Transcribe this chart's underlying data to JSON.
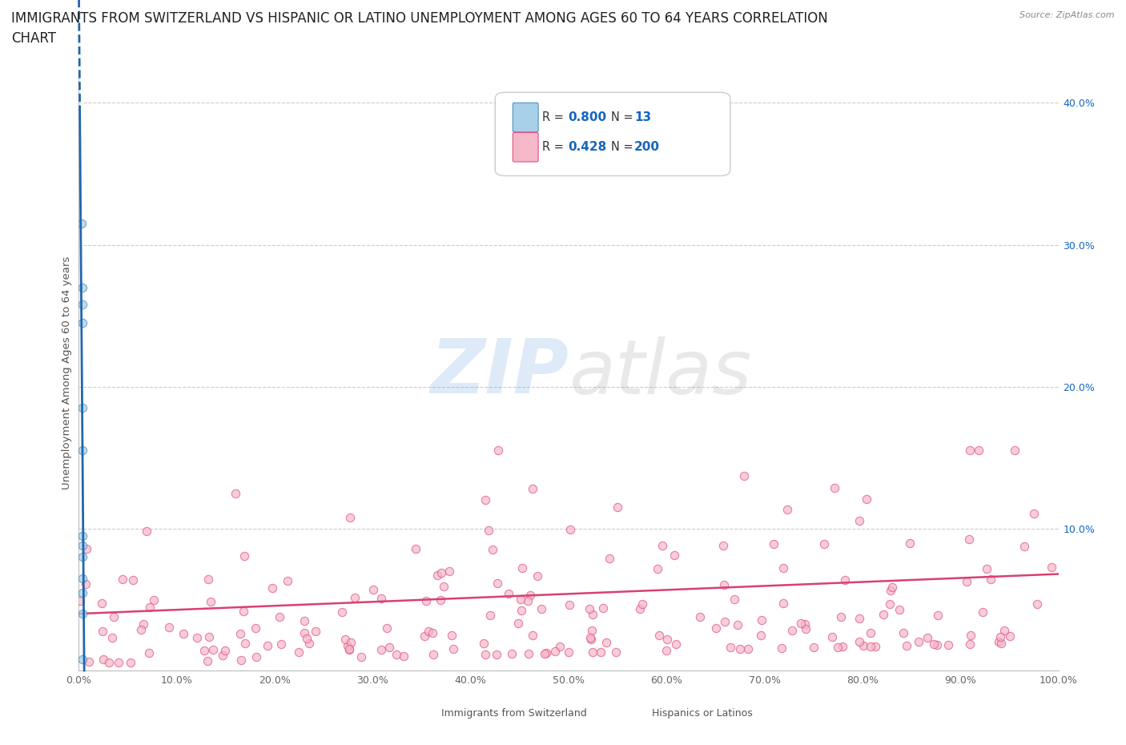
{
  "title_line1": "IMMIGRANTS FROM SWITZERLAND VS HISPANIC OR LATINO UNEMPLOYMENT AMONG AGES 60 TO 64 YEARS CORRELATION",
  "title_line2": "CHART",
  "source": "Source: ZipAtlas.com",
  "legend_r1": "0.800",
  "legend_n1": "13",
  "legend_r2": "0.428",
  "legend_n2": "200",
  "color_blue_fill": "#a8d0e8",
  "color_blue_edge": "#4a90c4",
  "color_blue_line": "#2166ac",
  "color_pink_fill": "#f4b8c8",
  "color_pink_edge": "#e05080",
  "color_pink_line": "#d94070",
  "color_text_blue": "#1565C0",
  "color_grid": "#cccccc",
  "ylabel": "Unemployment Among Ages 60 to 64 years",
  "xlabel_left": "Immigrants from Switzerland",
  "xlabel_right": "Hispanics or Latinos",
  "xlim": [
    0.0,
    1.0
  ],
  "ylim": [
    0.0,
    0.42
  ],
  "blue_scatter_x": [
    0.003,
    0.004,
    0.004,
    0.004,
    0.004,
    0.004,
    0.004,
    0.004,
    0.004,
    0.004,
    0.004,
    0.004,
    0.004
  ],
  "blue_scatter_y": [
    0.315,
    0.27,
    0.258,
    0.245,
    0.185,
    0.155,
    0.095,
    0.088,
    0.08,
    0.065,
    0.055,
    0.04,
    0.008
  ],
  "blue_trend_x0": 0.001,
  "blue_trend_y0": 0.395,
  "blue_trend_x1": 0.0055,
  "blue_trend_y1": 0.0,
  "pink_trend_x0": 0.0,
  "pink_trend_y0": 0.04,
  "pink_trend_x1": 1.0,
  "pink_trend_y1": 0.068,
  "title_fontsize": 12,
  "axis_label_fontsize": 9.5,
  "tick_fontsize": 9,
  "right_ytick_labels": [
    "10.0%",
    "20.0%",
    "30.0%",
    "40.0%"
  ],
  "right_ytick_values": [
    0.1,
    0.2,
    0.3,
    0.4
  ],
  "x_tick_values": [
    0.0,
    0.1,
    0.2,
    0.3,
    0.4,
    0.5,
    0.6,
    0.7,
    0.8,
    0.9,
    1.0
  ],
  "x_tick_labels": [
    "0.0%",
    "10.0%",
    "20.0%",
    "30.0%",
    "40.0%",
    "50.0%",
    "60.0%",
    "70.0%",
    "80.0%",
    "90.0%",
    "100.0%"
  ]
}
